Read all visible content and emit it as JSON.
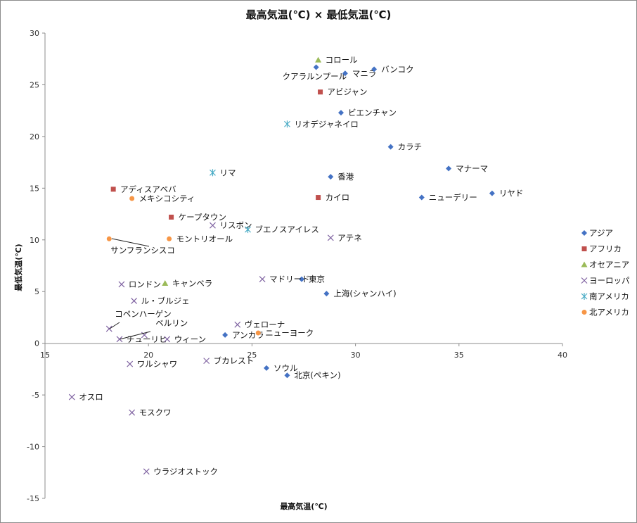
{
  "chart_data": {
    "type": "scatter",
    "title": "最高気温(℃) × 最低気温(℃)",
    "xlabel": "最高気温(℃)",
    "ylabel": "最低気温(℃)",
    "xlim": [
      15,
      40
    ],
    "ylim": [
      -15,
      30
    ],
    "xticks": [
      15,
      20,
      25,
      30,
      35,
      40
    ],
    "yticks": [
      -15,
      -10,
      -5,
      0,
      5,
      10,
      15,
      20,
      25,
      30
    ],
    "grid": false,
    "legend_position": "right",
    "series": [
      {
        "name": "アジア",
        "marker": "diamond",
        "color": "#4472C4",
        "points": [
          {
            "label": "クアラルンプール",
            "x": 28.1,
            "y": 26.7
          },
          {
            "label": "マニラ",
            "x": 29.5,
            "y": 26.1
          },
          {
            "label": "バンコク",
            "x": 30.9,
            "y": 26.5
          },
          {
            "label": "ビエンチャン",
            "x": 29.3,
            "y": 22.3
          },
          {
            "label": "カラチ",
            "x": 31.7,
            "y": 19.0
          },
          {
            "label": "マナーマ",
            "x": 34.5,
            "y": 16.9
          },
          {
            "label": "香港",
            "x": 28.8,
            "y": 16.1
          },
          {
            "label": "リヤド",
            "x": 36.6,
            "y": 14.5
          },
          {
            "label": "ニューデリー",
            "x": 33.2,
            "y": 14.1
          },
          {
            "label": "東京",
            "x": 27.4,
            "y": 6.2
          },
          {
            "label": "上海(シャンハイ)",
            "x": 28.6,
            "y": 4.8
          },
          {
            "label": "アンカラ",
            "x": 23.7,
            "y": 0.8
          },
          {
            "label": "ソウル",
            "x": 25.7,
            "y": -2.4
          },
          {
            "label": "北京(ペキン)",
            "x": 26.7,
            "y": -3.1
          }
        ]
      },
      {
        "name": "アフリカ",
        "marker": "square",
        "color": "#C0504D",
        "points": [
          {
            "label": "アビジャン",
            "x": 28.3,
            "y": 24.3
          },
          {
            "label": "カイロ",
            "x": 28.2,
            "y": 14.1
          },
          {
            "label": "アディスアベバ",
            "x": 18.3,
            "y": 14.9
          },
          {
            "label": "ケープタウン",
            "x": 21.1,
            "y": 12.2
          }
        ]
      },
      {
        "name": "オセアニア",
        "marker": "triangle",
        "color": "#9BBB59",
        "points": [
          {
            "label": "コロール",
            "x": 28.2,
            "y": 27.4
          },
          {
            "label": "キャンベラ",
            "x": 20.8,
            "y": 5.8
          }
        ]
      },
      {
        "name": "ヨーロッパ",
        "marker": "x",
        "color": "#8064A2",
        "points": [
          {
            "label": "リスボン",
            "x": 23.1,
            "y": 11.4
          },
          {
            "label": "アテネ",
            "x": 28.8,
            "y": 10.2
          },
          {
            "label": "マドリード",
            "x": 25.5,
            "y": 6.2
          },
          {
            "label": "ロンドン",
            "x": 18.7,
            "y": 5.7
          },
          {
            "label": "ル・ブルジェ",
            "x": 19.3,
            "y": 4.1
          },
          {
            "label": "コペンハーゲン",
            "x": 18.1,
            "y": 1.4
          },
          {
            "label": "ヴェローナ",
            "x": 24.3,
            "y": 1.8
          },
          {
            "label": "ベルリン",
            "x": 19.8,
            "y": 0.8
          },
          {
            "label": "チューリヒ",
            "x": 18.6,
            "y": 0.4
          },
          {
            "label": "ウィーン",
            "x": 20.9,
            "y": 0.4
          },
          {
            "label": "ワルシャワ",
            "x": 19.1,
            "y": -2.0
          },
          {
            "label": "ブカレスト",
            "x": 22.8,
            "y": -1.7
          },
          {
            "label": "オスロ",
            "x": 16.3,
            "y": -5.2
          },
          {
            "label": "モスクワ",
            "x": 19.2,
            "y": -6.7
          },
          {
            "label": "ウラジオストック",
            "x": 19.9,
            "y": -12.4
          }
        ]
      },
      {
        "name": "南アメリカ",
        "marker": "star",
        "color": "#4BACC6",
        "points": [
          {
            "label": "リオデジャネイロ",
            "x": 26.7,
            "y": 21.2
          },
          {
            "label": "リマ",
            "x": 23.1,
            "y": 16.5
          },
          {
            "label": "ブエノスアイレス",
            "x": 24.8,
            "y": 11.0
          }
        ]
      },
      {
        "name": "北アメリカ",
        "marker": "circle",
        "color": "#F79646",
        "points": [
          {
            "label": "メキシコシティ",
            "x": 19.2,
            "y": 14.0
          },
          {
            "label": "サンフランシスコ",
            "x": 18.1,
            "y": 10.1
          },
          {
            "label": "モントリオール",
            "x": 21.0,
            "y": 10.1
          },
          {
            "label": "ニューヨーク",
            "x": 25.3,
            "y": 1.0
          }
        ]
      }
    ]
  }
}
